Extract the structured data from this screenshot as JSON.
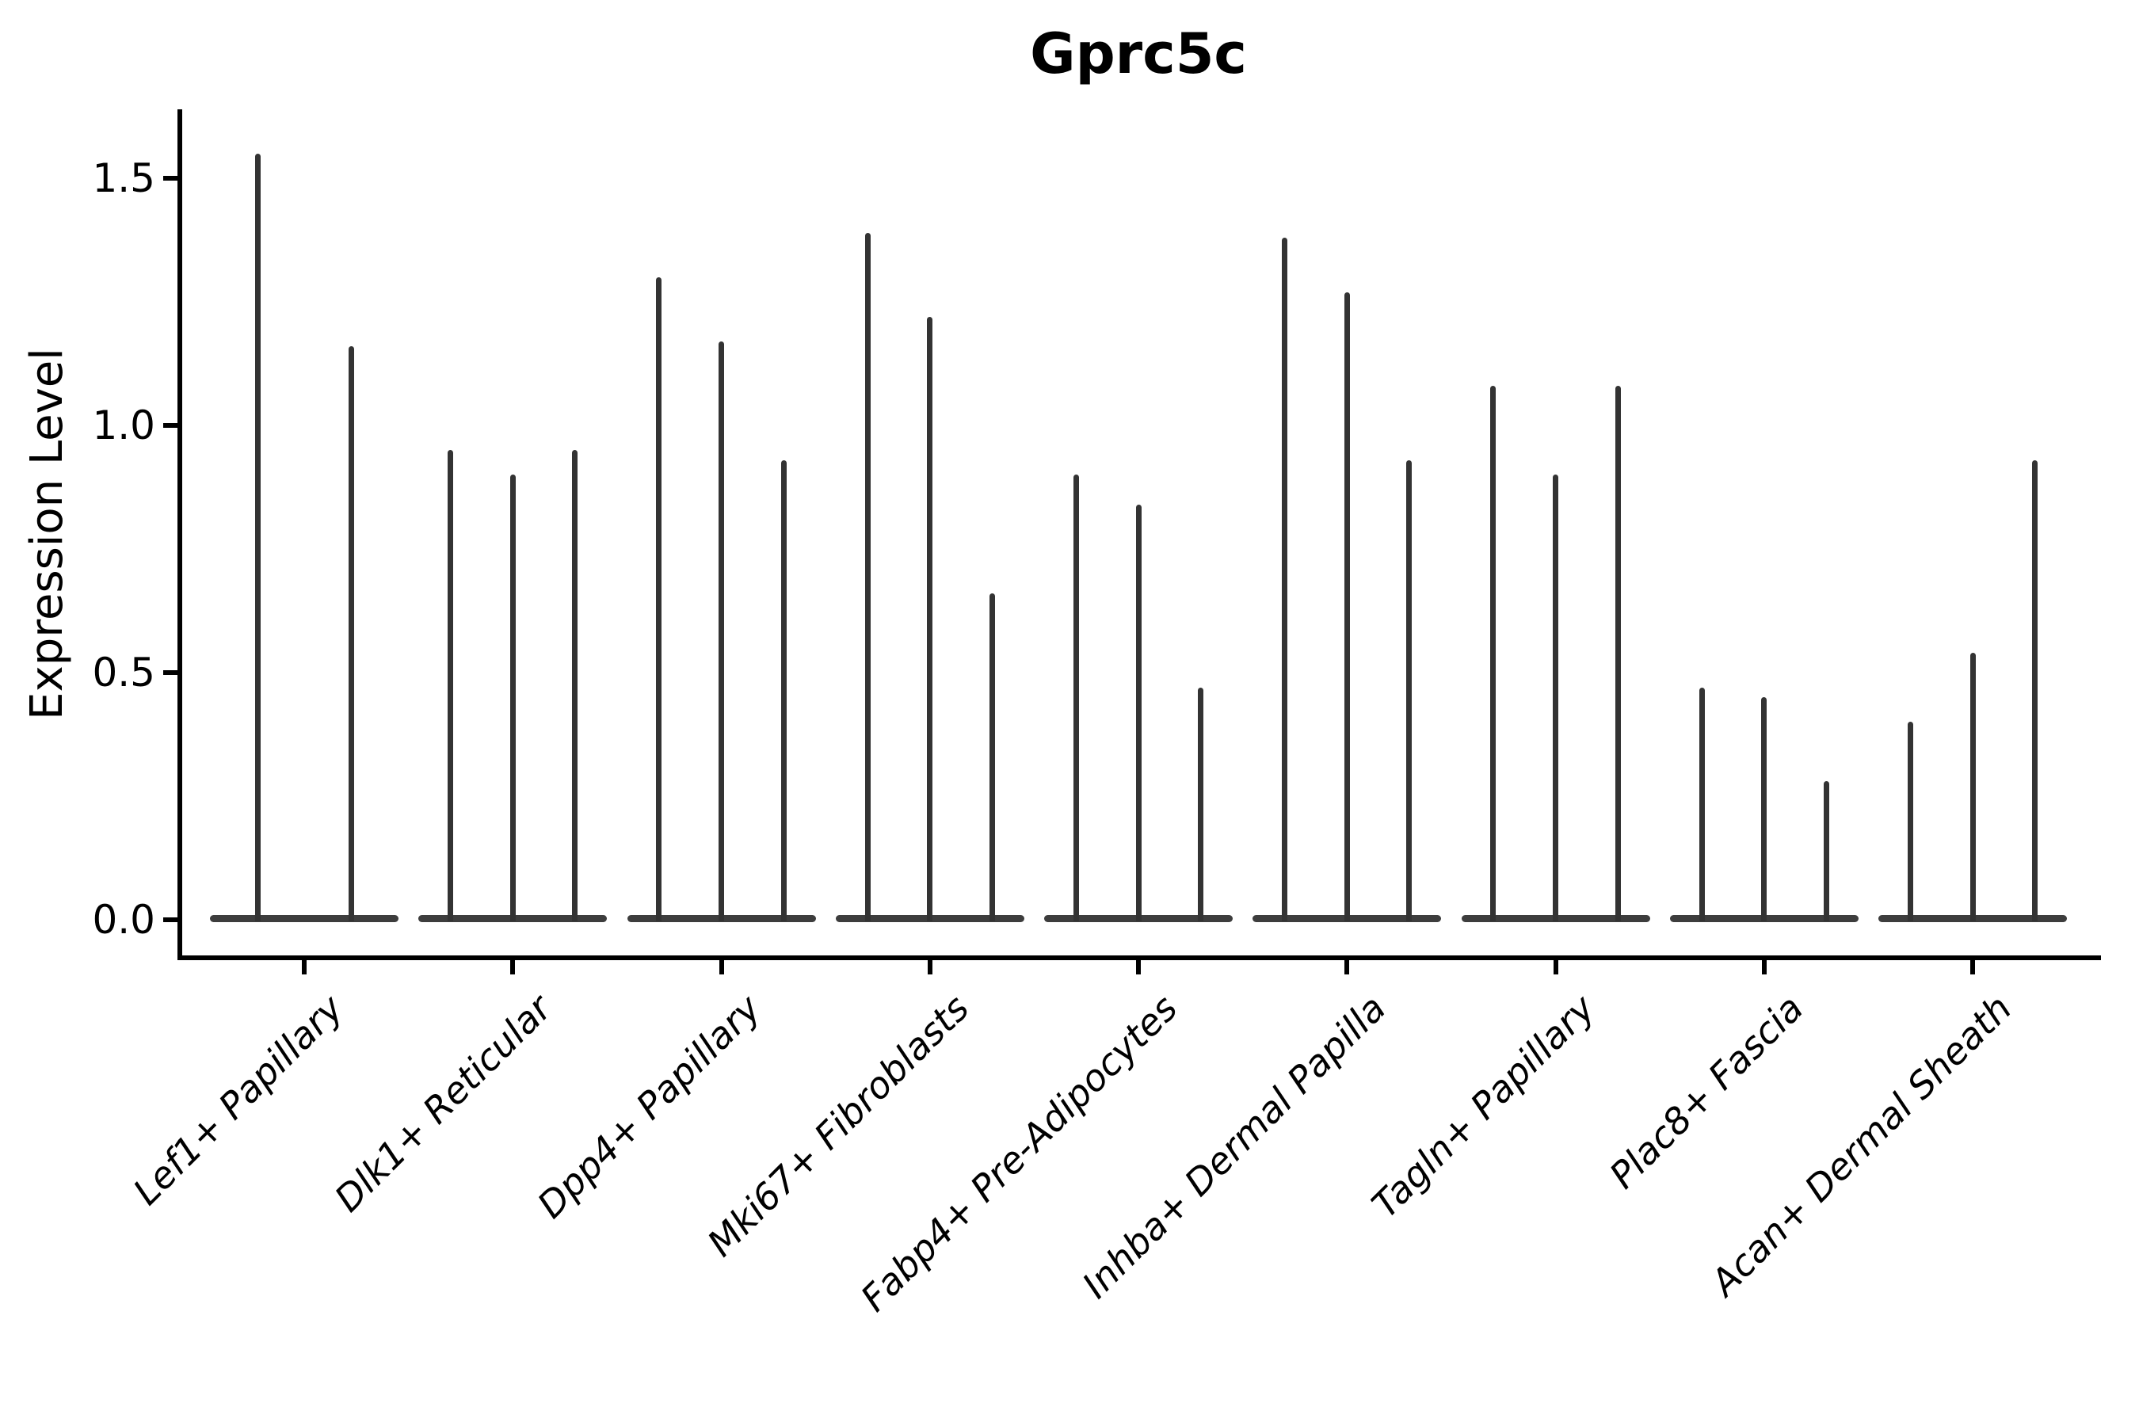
{
  "chart_data": {
    "type": "violin",
    "title": "Gprc5c",
    "ylabel": "Expression Level",
    "xlabel": "",
    "ytick_values": [
      0.0,
      0.5,
      1.0,
      1.5
    ],
    "ytick_labels": [
      "0.0",
      "0.5",
      "1.0",
      "1.5"
    ],
    "ylim": [
      -0.08,
      1.64
    ],
    "grid": false,
    "legend": null,
    "categories": [
      "Lef1+ Papillary",
      "Dlk1+ Reticular",
      "Dpp4+ Papillary",
      "Mki67+ Fibroblasts",
      "Fabp4+ Pre-Adipocytes",
      "Inhba+ Dermal Papilla",
      "Tagln+ Papillary",
      "Plac8+ Fascia",
      "Acan+ Dermal Sheath"
    ],
    "groups": [
      {
        "category": "Lef1+ Papillary",
        "violin_maxima": [
          1.55,
          1.16
        ]
      },
      {
        "category": "Dlk1+ Reticular",
        "violin_maxima": [
          0.95,
          0.9,
          0.95
        ]
      },
      {
        "category": "Dpp4+ Papillary",
        "violin_maxima": [
          1.3,
          1.17,
          0.93
        ]
      },
      {
        "category": "Mki67+ Fibroblasts",
        "violin_maxima": [
          1.39,
          1.22,
          0.66
        ]
      },
      {
        "category": "Fabp4+ Pre-Adipocytes",
        "violin_maxima": [
          0.9,
          0.84,
          0.47
        ]
      },
      {
        "category": "Inhba+ Dermal Papilla",
        "violin_maxima": [
          1.38,
          1.27,
          0.93
        ]
      },
      {
        "category": "Tagln+ Papillary",
        "violin_maxima": [
          1.08,
          0.9,
          1.08
        ]
      },
      {
        "category": "Plac8+ Fascia",
        "violin_maxima": [
          0.47,
          0.45,
          0.28
        ]
      },
      {
        "category": "Acan+ Dermal Sheath",
        "violin_maxima": [
          0.4,
          0.54,
          0.93
        ]
      }
    ],
    "style": {
      "violin_color": "#333333",
      "violin_base_color": "#3d3d3d",
      "axis_color": "#000000",
      "text_color": "#000000",
      "background_color": "#ffffff"
    },
    "notes": "Violin plot; each cluster shows 2-3 extremely narrow violins (spikes) rising from a flat base at expression 0. Values above are the maximum (tip) of each spike in Expression Level units."
  }
}
